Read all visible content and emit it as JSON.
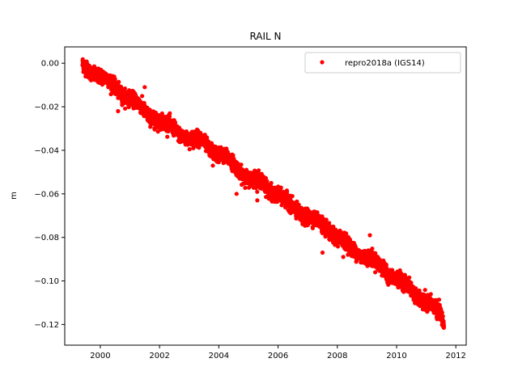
{
  "chart_data": {
    "type": "scatter",
    "title": "RAIL N",
    "xlabel": "",
    "ylabel": "m",
    "xlim": [
      1998.8,
      2012.35
    ],
    "ylim": [
      -0.1295,
      0.0075
    ],
    "xticks": [
      2000,
      2002,
      2004,
      2006,
      2008,
      2010,
      2012
    ],
    "xtick_labels": [
      "2000",
      "2002",
      "2004",
      "2006",
      "2008",
      "2010",
      "2012"
    ],
    "yticks": [
      0.0,
      -0.02,
      -0.04,
      -0.06,
      -0.08,
      -0.1,
      -0.12
    ],
    "ytick_labels": [
      "0.00",
      "−0.02",
      "−0.04",
      "−0.06",
      "−0.08",
      "−0.10",
      "−0.12"
    ],
    "grid": false,
    "legend": {
      "position": "top-right",
      "entries": [
        "repro2018a (IGS14)"
      ]
    },
    "series": [
      {
        "name": "repro2018a (IGS14)",
        "color": "#ff0000",
        "marker": "circle",
        "trend": {
          "x": [
            1999.4,
            2000.0,
            2000.5,
            2001.0,
            2001.5,
            2002.0,
            2002.5,
            2003.0,
            2003.5,
            2004.0,
            2004.5,
            2005.0,
            2005.5,
            2006.0,
            2006.5,
            2007.0,
            2007.5,
            2008.0,
            2008.5,
            2009.0,
            2009.5,
            2010.0,
            2010.5,
            2011.0,
            2011.5,
            2011.6
          ],
          "y": [
            -0.001,
            -0.006,
            -0.011,
            -0.016,
            -0.022,
            -0.027,
            -0.03,
            -0.035,
            -0.036,
            -0.042,
            -0.046,
            -0.053,
            -0.055,
            -0.061,
            -0.066,
            -0.071,
            -0.074,
            -0.08,
            -0.085,
            -0.089,
            -0.094,
            -0.099,
            -0.104,
            -0.11,
            -0.115,
            -0.12
          ]
        },
        "outliers": [
          {
            "x": 2009.1,
            "y": -0.079
          },
          {
            "x": 2001.5,
            "y": -0.011
          },
          {
            "x": 2003.8,
            "y": -0.047
          },
          {
            "x": 2004.6,
            "y": -0.06
          },
          {
            "x": 2005.3,
            "y": -0.063
          },
          {
            "x": 2007.5,
            "y": -0.087
          },
          {
            "x": 2008.2,
            "y": -0.089
          },
          {
            "x": 2000.6,
            "y": -0.022
          }
        ]
      }
    ]
  }
}
